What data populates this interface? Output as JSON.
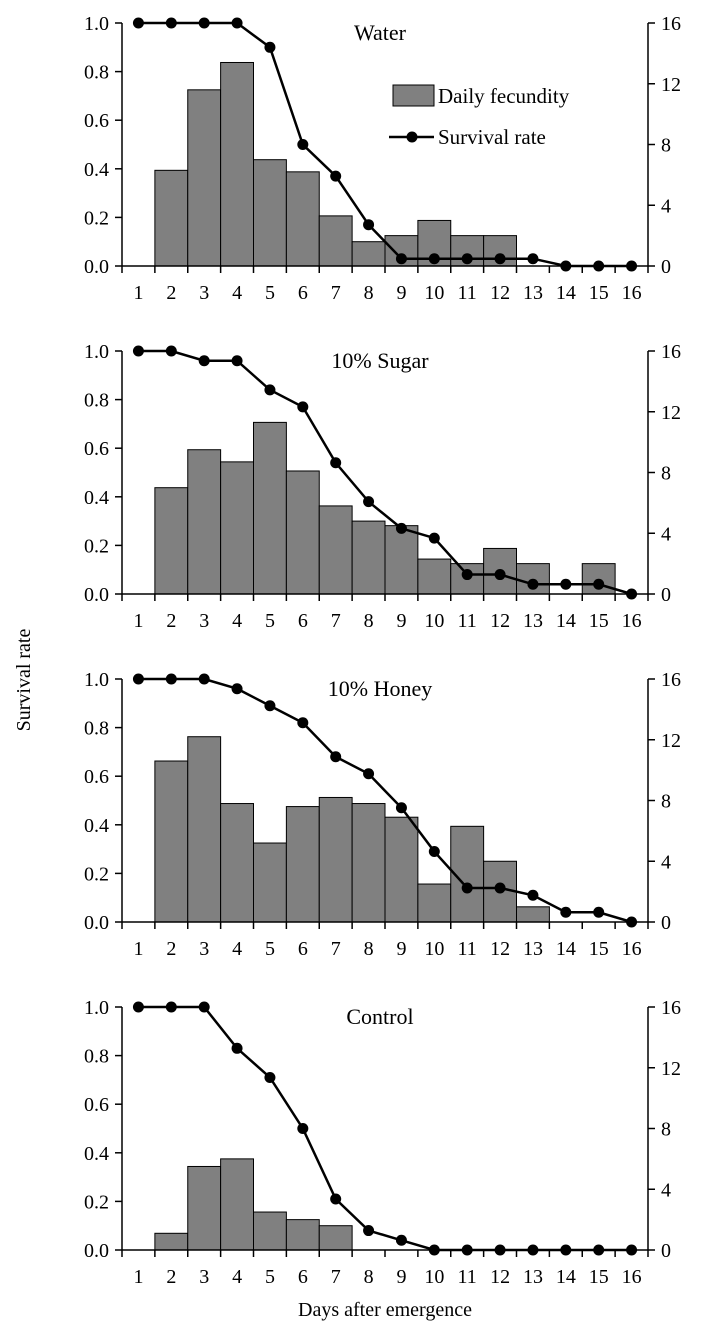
{
  "figure": {
    "ylabel": "Survival rate",
    "xlabel": "Days after emergence"
  },
  "legend": {
    "bar_label": "Daily fecundity",
    "line_label": "Survival rate"
  },
  "colors": {
    "bar_fill": "#808080",
    "bar_stroke": "#000000",
    "line": "#000000",
    "marker": "#000000"
  },
  "chart_data": [
    {
      "type": "bar+line",
      "title": "Water",
      "x": [
        1,
        2,
        3,
        4,
        5,
        6,
        7,
        8,
        9,
        10,
        11,
        12,
        13,
        14,
        15,
        16
      ],
      "series": [
        {
          "name": "Daily fecundity",
          "axis": "right",
          "type": "bar",
          "values": [
            0,
            6.3,
            11.6,
            13.4,
            7.0,
            6.2,
            3.3,
            1.6,
            2.0,
            3.0,
            2.0,
            2.0,
            0,
            0,
            0,
            0
          ]
        },
        {
          "name": "Survival rate",
          "axis": "left",
          "type": "line",
          "values": [
            1.0,
            1.0,
            1.0,
            1.0,
            0.9,
            0.5,
            0.37,
            0.17,
            0.03,
            0.03,
            0.03,
            0.03,
            0.03,
            0,
            0,
            0
          ]
        }
      ],
      "ylim_left": [
        0,
        1.0
      ],
      "ylim_right": [
        0,
        16
      ],
      "left_ticks": [
        "0.0",
        "0.2",
        "0.4",
        "0.6",
        "0.8",
        "1.0"
      ],
      "right_ticks": [
        "0",
        "4",
        "8",
        "12",
        "16"
      ],
      "x_ticks": [
        "1",
        "2",
        "3",
        "4",
        "5",
        "6",
        "7",
        "8",
        "9",
        "10",
        "11",
        "12",
        "13",
        "14",
        "15",
        "16"
      ],
      "show_legend": true
    },
    {
      "type": "bar+line",
      "title": "10% Sugar",
      "x": [
        1,
        2,
        3,
        4,
        5,
        6,
        7,
        8,
        9,
        10,
        11,
        12,
        13,
        14,
        15,
        16
      ],
      "series": [
        {
          "name": "Daily fecundity",
          "axis": "right",
          "type": "bar",
          "values": [
            0,
            7.0,
            9.5,
            8.7,
            11.3,
            8.1,
            5.8,
            4.8,
            4.5,
            2.3,
            2.0,
            3.0,
            2.0,
            0,
            2.0,
            0
          ]
        },
        {
          "name": "Survival rate",
          "axis": "left",
          "type": "line",
          "values": [
            1.0,
            1.0,
            0.96,
            0.96,
            0.84,
            0.77,
            0.54,
            0.38,
            0.27,
            0.23,
            0.08,
            0.08,
            0.04,
            0.04,
            0.04,
            0
          ]
        }
      ],
      "ylim_left": [
        0,
        1.0
      ],
      "ylim_right": [
        0,
        16
      ],
      "left_ticks": [
        "0.0",
        "0.2",
        "0.4",
        "0.6",
        "0.8",
        "1.0"
      ],
      "right_ticks": [
        "0",
        "4",
        "8",
        "12",
        "16"
      ],
      "x_ticks": [
        "1",
        "2",
        "3",
        "4",
        "5",
        "6",
        "7",
        "8",
        "9",
        "10",
        "11",
        "12",
        "13",
        "14",
        "15",
        "16"
      ],
      "show_legend": false
    },
    {
      "type": "bar+line",
      "title": "10% Honey",
      "x": [
        1,
        2,
        3,
        4,
        5,
        6,
        7,
        8,
        9,
        10,
        11,
        12,
        13,
        14,
        15,
        16
      ],
      "series": [
        {
          "name": "Daily fecundity",
          "axis": "right",
          "type": "bar",
          "values": [
            0,
            10.6,
            12.2,
            7.8,
            5.2,
            7.6,
            8.2,
            7.8,
            6.9,
            2.5,
            6.3,
            4.0,
            1.0,
            0,
            0,
            0
          ]
        },
        {
          "name": "Survival rate",
          "axis": "left",
          "type": "line",
          "values": [
            1.0,
            1.0,
            1.0,
            0.96,
            0.89,
            0.82,
            0.68,
            0.61,
            0.47,
            0.29,
            0.14,
            0.14,
            0.11,
            0.04,
            0.04,
            0
          ]
        }
      ],
      "ylim_left": [
        0,
        1.0
      ],
      "ylim_right": [
        0,
        16
      ],
      "left_ticks": [
        "0.0",
        "0.2",
        "0.4",
        "0.6",
        "0.8",
        "1.0"
      ],
      "right_ticks": [
        "0",
        "4",
        "8",
        "12",
        "16"
      ],
      "x_ticks": [
        "1",
        "2",
        "3",
        "4",
        "5",
        "6",
        "7",
        "8",
        "9",
        "10",
        "11",
        "12",
        "13",
        "14",
        "15",
        "16"
      ],
      "show_legend": false
    },
    {
      "type": "bar+line",
      "title": "Control",
      "x": [
        1,
        2,
        3,
        4,
        5,
        6,
        7,
        8,
        9,
        10,
        11,
        12,
        13,
        14,
        15,
        16
      ],
      "series": [
        {
          "name": "Daily fecundity",
          "axis": "right",
          "type": "bar",
          "values": [
            0,
            1.1,
            5.5,
            6.0,
            2.5,
            2.0,
            1.6,
            0,
            0,
            0,
            0,
            0,
            0,
            0,
            0,
            0
          ]
        },
        {
          "name": "Survival rate",
          "axis": "left",
          "type": "line",
          "values": [
            1.0,
            1.0,
            1.0,
            0.83,
            0.71,
            0.5,
            0.21,
            0.08,
            0.04,
            0,
            0,
            0,
            0,
            0,
            0,
            0
          ]
        }
      ],
      "ylim_left": [
        0,
        1.0
      ],
      "ylim_right": [
        0,
        16
      ],
      "left_ticks": [
        "0.0",
        "0.2",
        "0.4",
        "0.6",
        "0.8",
        "1.0"
      ],
      "right_ticks": [
        "0",
        "4",
        "8",
        "12",
        "16"
      ],
      "x_ticks": [
        "1",
        "2",
        "3",
        "4",
        "5",
        "6",
        "7",
        "8",
        "9",
        "10",
        "11",
        "12",
        "13",
        "14",
        "15",
        "16"
      ],
      "show_legend": false
    }
  ]
}
